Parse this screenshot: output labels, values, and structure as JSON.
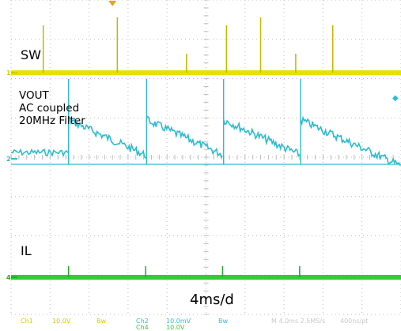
{
  "chart_data": {
    "type": "line",
    "title": "",
    "timebase": "4ms/d",
    "series": [
      {
        "name": "SW",
        "color": "#e8e000",
        "channel": "1",
        "kind": "switch-node",
        "spike_times_ms": [
          3.3,
          10.9,
          18.0,
          22.1,
          25.6,
          29.2,
          33.0
        ]
      },
      {
        "name": "VOUT",
        "color": "#2bbcd0",
        "channel": "2",
        "kind": "ripple",
        "notes": [
          "AC coupled",
          "20MHz Filter"
        ],
        "jump_times_ms": [
          5.9,
          13.9,
          21.8,
          29.7
        ],
        "sawtooth_peak_div": 0.85,
        "sawtooth_trough_div": -0.15,
        "baseline_div": -0.3
      },
      {
        "name": "IL",
        "color": "#33cc33",
        "channel": "4",
        "kind": "current",
        "spike_times_ms": [
          5.9,
          13.8,
          21.7,
          29.6
        ]
      }
    ],
    "xlim_ms": [
      0,
      40
    ],
    "divisions": {
      "x": 10,
      "y": 8
    },
    "grid": true
  },
  "labels": {
    "sw": "SW",
    "vout_lines": [
      "VOUT",
      "AC coupled",
      "20MHz Filter"
    ],
    "il": "IL",
    "timebase": "4ms/d"
  },
  "markers": {
    "ch1": "1",
    "ch2": "2",
    "ch4": "4"
  },
  "status_bar": {
    "ch1": "Ch1",
    "ch1_scale": "10.0V",
    "ch1_bw": "Bw",
    "ch2": "Ch2",
    "ch2_scale": "10.0mV",
    "ch2_bw": "Bw",
    "ch4": "Ch4",
    "ch4_scale": "10.0V",
    "time": "M 4.0ms 2.5MS/s",
    "rate": "400ns/pt"
  }
}
